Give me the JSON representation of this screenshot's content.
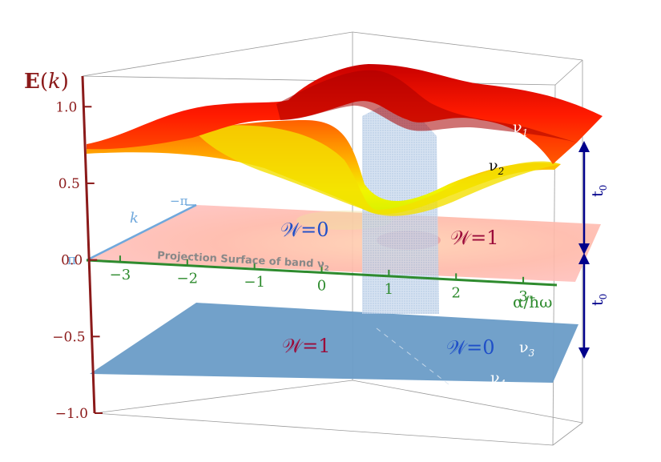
{
  "chart_data": {
    "type": "surface",
    "title": "",
    "zlabel": "E(k)",
    "zlabel_fn": "E",
    "zlabel_var": "k",
    "z_ticks": [
      "1.0",
      "0.5",
      "0.0",
      "−0.5",
      "−1.0"
    ],
    "zlim": [
      -1.0,
      1.2
    ],
    "xlabel": "α/ħω",
    "x_ticks": [
      "−3",
      "−2",
      "−1",
      "0",
      "1",
      "2",
      "3"
    ],
    "xlim": [
      -3.5,
      3.5
    ],
    "k_label": "k",
    "k_ticks": [
      "−π",
      "π"
    ],
    "bands": [
      {
        "name": "ν1",
        "sym": "ν",
        "sub": "1"
      },
      {
        "name": "ν2",
        "sym": "ν",
        "sub": "2"
      },
      {
        "name": "ν3",
        "sym": "ν",
        "sub": "3"
      },
      {
        "name": "ν4",
        "sym": "ν",
        "sub": "4"
      }
    ],
    "projection_label": "Projection Surface of band ν",
    "projection_sub": "2",
    "winding_labels": {
      "upper_left": "𝒲=0",
      "upper_right": "𝒲=1",
      "lower_left": "𝒲=1",
      "lower_right": "𝒲=0"
    },
    "gap_label": "t",
    "gap_sub": "0",
    "highlight_region": [
      1.0,
      2.2
    ],
    "colors": {
      "axis_z": "#8b1a1a",
      "axis_x": "#2e8b2e",
      "axis_k": "#6fa8dc",
      "arrow": "#00008b",
      "winding_blue": "#1f4fc8",
      "winding_red": "#9b0b3a",
      "lower_band": "#6a9cc7",
      "band_top": "#e80000"
    }
  }
}
